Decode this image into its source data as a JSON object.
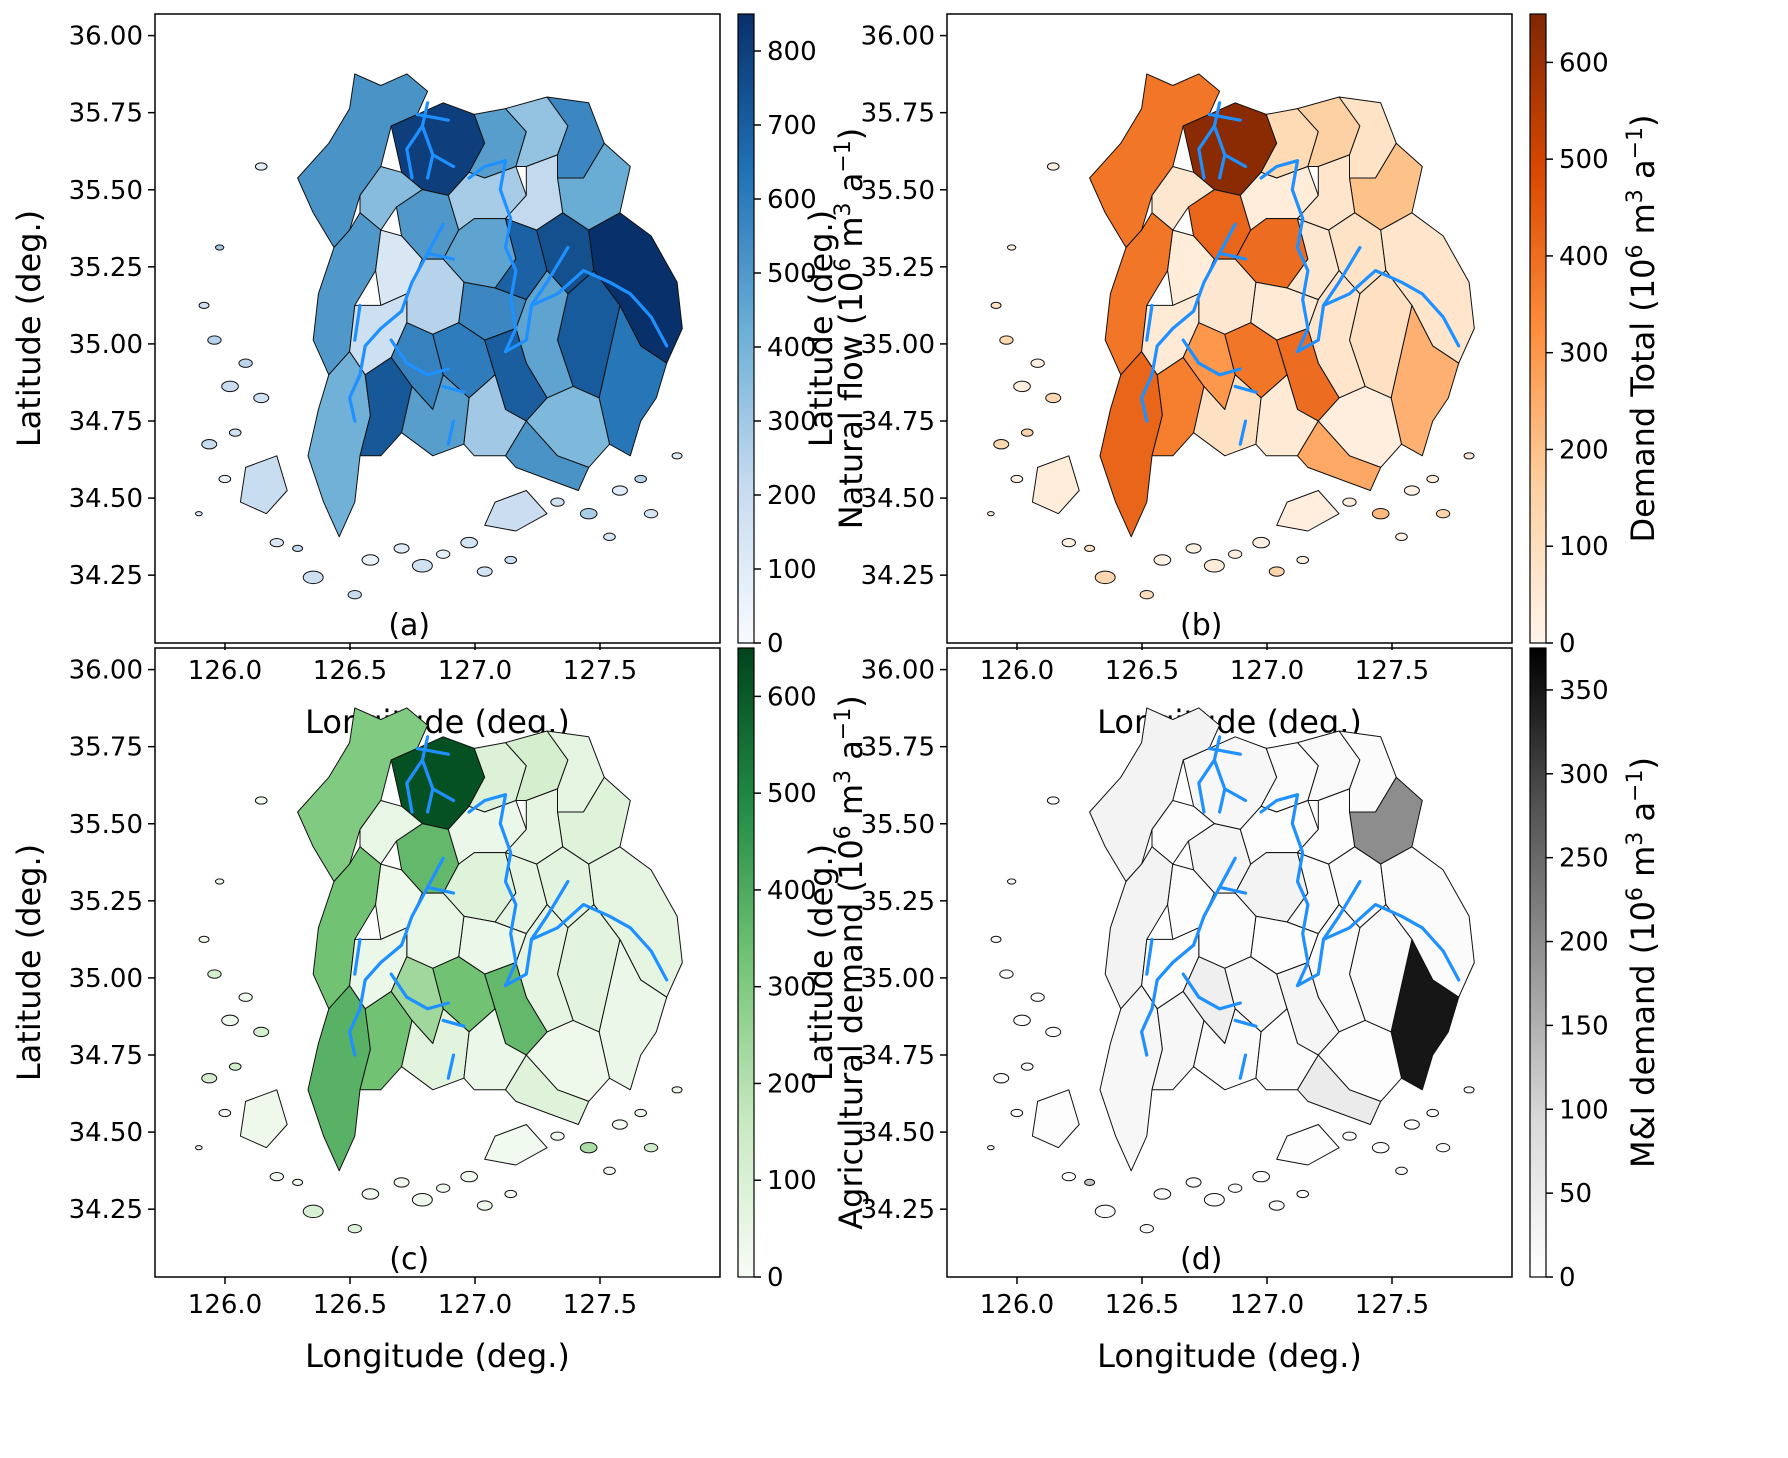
{
  "figure": {
    "panels": [
      {
        "id": "a",
        "label": "(a)",
        "colorbar_label": "Natural flow (10",
        "colorbar_label_sup": "6",
        "colorbar_label_mid": " m",
        "colorbar_label_sup2": "3",
        "colorbar_label_mid2": " a",
        "colorbar_label_sup3": "−1",
        "colorbar_label_end": ")",
        "cmap": [
          "#f7fbff",
          "#c6dbef",
          "#6baed6",
          "#2171b5",
          "#08306b"
        ],
        "vmax": 850,
        "ticks": [
          "0",
          "100",
          "200",
          "300",
          "400",
          "500",
          "600",
          "700",
          "800"
        ],
        "tick_values": [
          0,
          100,
          200,
          300,
          400,
          500,
          600,
          700,
          800
        ],
        "basin_values": [
          520,
          800,
          480,
          330,
          560,
          430,
          500,
          360,
          290,
          220,
          460,
          690,
          750,
          850,
          620,
          710,
          460,
          560,
          500,
          130,
          250,
          180,
          410,
          720,
          580,
          600,
          700,
          480,
          300,
          380,
          520,
          200,
          190
        ]
      },
      {
        "id": "b",
        "label": "(b)",
        "colorbar_label": "Demand Total (10",
        "colorbar_label_sup": "6",
        "colorbar_label_mid": " m",
        "colorbar_label_sup2": "3",
        "colorbar_label_mid2": " a",
        "colorbar_label_sup3": "−1",
        "colorbar_label_end": ")",
        "cmap": [
          "#fff5eb",
          "#fdd0a2",
          "#fd8d3c",
          "#d94801",
          "#7f2704"
        ],
        "vmax": 650,
        "ticks": [
          "0",
          "100",
          "200",
          "300",
          "400",
          "500",
          "600"
        ],
        "tick_values": [
          0,
          100,
          200,
          300,
          400,
          500,
          600
        ],
        "basin_values": [
          380,
          630,
          120,
          160,
          80,
          200,
          420,
          60,
          40,
          70,
          400,
          60,
          80,
          70,
          240,
          90,
          70,
          50,
          380,
          40,
          60,
          50,
          420,
          360,
          300,
          380,
          400,
          90,
          50,
          30,
          260,
          40,
          30
        ]
      },
      {
        "id": "c",
        "label": "(c)",
        "colorbar_label": "Agricultural demand (10",
        "colorbar_label_sup": "6",
        "colorbar_label_mid": " m",
        "colorbar_label_sup2": "3",
        "colorbar_label_mid2": " a",
        "colorbar_label_sup3": "−1",
        "colorbar_label_end": ")",
        "cmap": [
          "#f7fcf5",
          "#c7e9c0",
          "#74c476",
          "#238b45",
          "#00441b"
        ],
        "vmax": 650,
        "ticks": [
          "0",
          "100",
          "200",
          "300",
          "400",
          "500",
          "600"
        ],
        "tick_values": [
          0,
          100,
          200,
          300,
          400,
          500,
          600
        ],
        "basin_values": [
          300,
          620,
          90,
          120,
          60,
          80,
          360,
          50,
          40,
          60,
          80,
          60,
          70,
          60,
          40,
          70,
          60,
          40,
          330,
          30,
          50,
          40,
          380,
          330,
          240,
          330,
          360,
          70,
          40,
          30,
          80,
          30,
          20
        ]
      },
      {
        "id": "d",
        "label": "(d)",
        "colorbar_label": "M&I demand (10",
        "colorbar_label_sup": "6",
        "colorbar_label_mid": " m",
        "colorbar_label_sup2": "3",
        "colorbar_label_mid2": " a",
        "colorbar_label_sup3": "−1",
        "colorbar_label_end": ")",
        "cmap": [
          "#ffffff",
          "#d9d9d9",
          "#969696",
          "#525252",
          "#000000"
        ],
        "vmax": 375,
        "ticks": [
          "0",
          "50",
          "100",
          "150",
          "200",
          "250",
          "300",
          "350"
        ],
        "tick_values": [
          0,
          50,
          100,
          150,
          200,
          250,
          300,
          350
        ],
        "basin_values": [
          30,
          20,
          10,
          15,
          10,
          200,
          25,
          8,
          5,
          5,
          30,
          10,
          10,
          10,
          350,
          15,
          10,
          5,
          30,
          5,
          8,
          5,
          20,
          20,
          40,
          20,
          25,
          10,
          8,
          5,
          50,
          5,
          5
        ]
      }
    ],
    "x_ticks": [
      "126.0",
      "126.5",
      "127.0",
      "127.5"
    ],
    "x_tick_values": [
      126.0,
      126.5,
      127.0,
      127.5
    ],
    "y_ticks": [
      "34.25",
      "34.50",
      "34.75",
      "35.00",
      "35.25",
      "35.50",
      "35.75",
      "36.00"
    ],
    "y_tick_values": [
      34.25,
      34.5,
      34.75,
      35.0,
      35.25,
      35.5,
      35.75,
      36.0
    ],
    "x_label": "Longitude (deg.)",
    "y_label": "Latitude (deg.)",
    "x_range": [
      125.72,
      127.98
    ],
    "y_range": [
      34.03,
      36.07
    ]
  },
  "chart_data": {
    "type": "choropleth",
    "title": "",
    "xlabel": "Longitude (deg.)",
    "ylabel": "Latitude (deg.)",
    "xlim": [
      125.72,
      127.98
    ],
    "ylim": [
      34.03,
      36.07
    ],
    "series": [
      {
        "name": "Natural flow",
        "unit": "10^6 m^3 a^-1",
        "range": [
          0,
          850
        ]
      },
      {
        "name": "Demand Total",
        "unit": "10^6 m^3 a^-1",
        "range": [
          0,
          650
        ]
      },
      {
        "name": "Agricultural demand",
        "unit": "10^6 m^3 a^-1",
        "range": [
          0,
          650
        ]
      },
      {
        "name": "M&I demand",
        "unit": "10^6 m^3 a^-1",
        "range": [
          0,
          375
        ]
      }
    ]
  }
}
